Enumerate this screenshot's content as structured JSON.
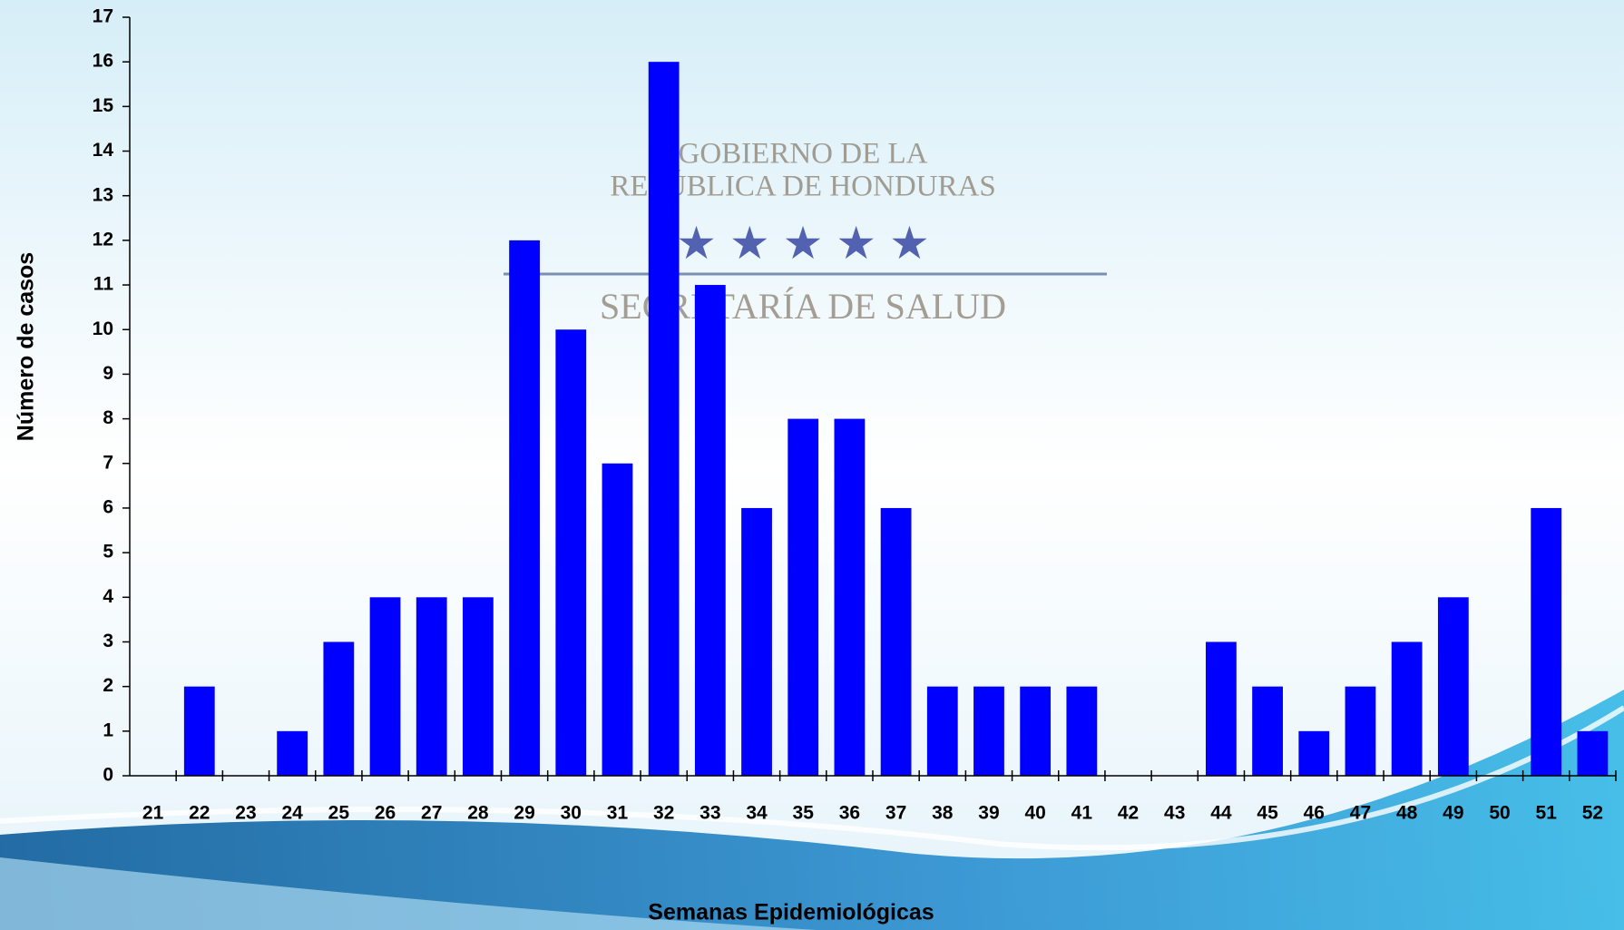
{
  "chart_data": {
    "type": "bar",
    "x_label": "Semanas Epidemiológicas",
    "y_label": "Número de casos",
    "categories": [
      "21",
      "22",
      "23",
      "24",
      "25",
      "26",
      "27",
      "28",
      "29",
      "30",
      "31",
      "32",
      "33",
      "34",
      "35",
      "36",
      "37",
      "38",
      "39",
      "40",
      "41",
      "42",
      "43",
      "44",
      "45",
      "46",
      "47",
      "48",
      "49",
      "50",
      "51",
      "52"
    ],
    "values": [
      0,
      2,
      0,
      1,
      3,
      4,
      4,
      4,
      12,
      10,
      7,
      16,
      11,
      6,
      8,
      8,
      6,
      2,
      2,
      2,
      2,
      0,
      0,
      3,
      2,
      1,
      2,
      3,
      4,
      0,
      6,
      1
    ],
    "color": "#0000ff",
    "ylim": [
      0,
      17
    ],
    "yticks": [
      0,
      1,
      2,
      3,
      4,
      5,
      6,
      7,
      8,
      9,
      10,
      11,
      12,
      13,
      14,
      15,
      16,
      17
    ]
  },
  "watermark": [
    "Gobierno de la",
    "República de Honduras",
    "Secretaría de Salud"
  ]
}
